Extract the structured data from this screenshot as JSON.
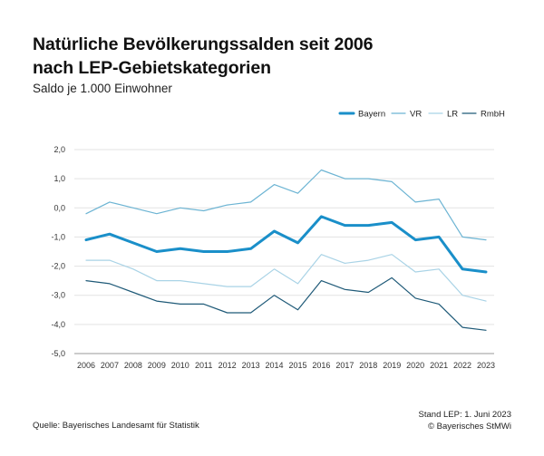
{
  "title_line1": "Natürliche Bevölkerungssalden seit 2006",
  "title_line2": "nach LEP-Gebietskategorien",
  "subtitle": "Saldo je 1.000 Einwohner",
  "footer": {
    "source": "Quelle: Bayerisches Landesamt für Statistik",
    "stand": "Stand LEP: 1. Juni 2023",
    "copyright": "© Bayerisches StMWi"
  },
  "chart_data": {
    "type": "line",
    "title": "Natürliche Bevölkerungssalden seit 2006 nach LEP-Gebietskategorien",
    "ylabel": "Saldo je 1.000 Einwohner",
    "xlabel": "",
    "ylim": [
      -5,
      2
    ],
    "yticks": [
      "2,0",
      "1,0",
      "0,0",
      "-1,0",
      "-2,0",
      "-3,0",
      "-4,0",
      "-5,0"
    ],
    "ytick_values": [
      2,
      1,
      0,
      -1,
      -2,
      -3,
      -4,
      -5
    ],
    "grid": true,
    "legend_position": "top-right",
    "x": [
      "2006",
      "2007",
      "2008",
      "2009",
      "2010",
      "2011",
      "2012",
      "2013",
      "2014",
      "2015",
      "2016",
      "2017",
      "2018",
      "2019",
      "2020",
      "2021",
      "2022",
      "2023"
    ],
    "series": [
      {
        "name": "Bayern",
        "color": "#1a8fc9",
        "width": 3,
        "values": [
          -1.1,
          -0.9,
          -1.2,
          -1.5,
          -1.4,
          -1.5,
          -1.5,
          -1.4,
          -0.8,
          -1.2,
          -0.3,
          -0.6,
          -0.6,
          -0.5,
          -1.1,
          -1.0,
          -2.1,
          -2.2
        ]
      },
      {
        "name": "VR",
        "color": "#6cb4d3",
        "width": 1.2,
        "values": [
          -0.2,
          0.2,
          0.0,
          -0.2,
          0.0,
          -0.1,
          0.1,
          0.2,
          0.8,
          0.5,
          1.3,
          1.0,
          1.0,
          0.9,
          0.2,
          0.3,
          -1.0,
          -1.1
        ]
      },
      {
        "name": "LR",
        "color": "#a9d3e6",
        "width": 1.2,
        "values": [
          -1.8,
          -1.8,
          -2.1,
          -2.5,
          -2.5,
          -2.6,
          -2.7,
          -2.7,
          -2.1,
          -2.6,
          -1.6,
          -1.9,
          -1.8,
          -1.6,
          -2.2,
          -2.1,
          -3.0,
          -3.2
        ]
      },
      {
        "name": "RmbH",
        "color": "#1f5a78",
        "width": 1.2,
        "values": [
          -2.5,
          -2.6,
          -2.9,
          -3.2,
          -3.3,
          -3.3,
          -3.6,
          -3.6,
          -3.0,
          -3.5,
          -2.5,
          -2.8,
          -2.9,
          -2.4,
          -3.1,
          -3.3,
          -4.1,
          -4.2
        ]
      }
    ]
  }
}
